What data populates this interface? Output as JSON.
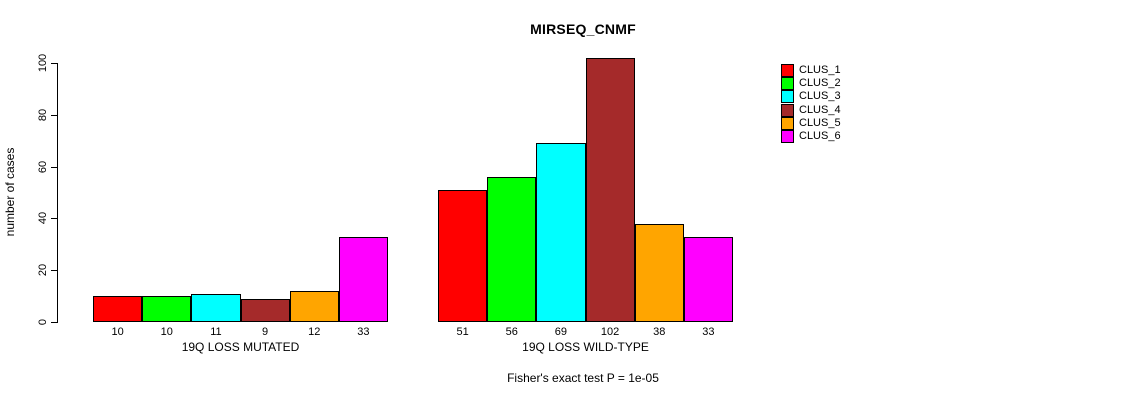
{
  "figure": {
    "background": "#ffffff",
    "title": "MIRSEQ_CNMF",
    "annotation": "Fisher's exact test P = 1e-05"
  },
  "chart_data": {
    "type": "bar",
    "title": "MIRSEQ_CNMF",
    "xlabel": "",
    "ylabel": "number of cases",
    "ylim": [
      0,
      100
    ],
    "yticks": [
      0,
      20,
      40,
      60,
      80,
      100
    ],
    "grid": false,
    "legend_position": "right-outside",
    "categories": [
      "19Q LOSS MUTATED",
      "19Q LOSS WILD-TYPE"
    ],
    "series": [
      {
        "name": "CLUS_1",
        "color": "#FF0000",
        "values": [
          10,
          51
        ]
      },
      {
        "name": "CLUS_2",
        "color": "#00FF00",
        "values": [
          10,
          56
        ]
      },
      {
        "name": "CLUS_3",
        "color": "#00FFFF",
        "values": [
          11,
          69
        ]
      },
      {
        "name": "CLUS_4",
        "color": "#A52A2A",
        "values": [
          9,
          102
        ]
      },
      {
        "name": "CLUS_5",
        "color": "#FFA500",
        "values": [
          12,
          38
        ]
      },
      {
        "name": "CLUS_6",
        "color": "#FF00FF",
        "values": [
          33,
          33
        ]
      }
    ],
    "bar_value_labels_shown": true,
    "annotation": "Fisher's exact test P = 1e-05"
  }
}
